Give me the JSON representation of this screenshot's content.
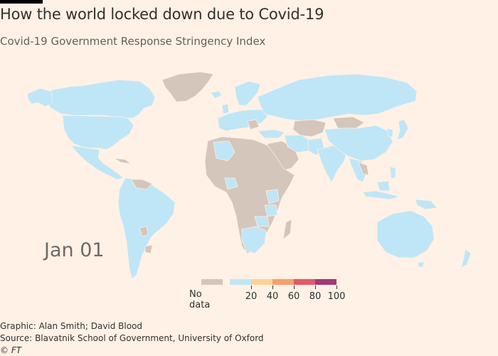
{
  "header": {
    "title": "How the world locked down due to Covid-19",
    "subtitle": "Covid-19 Government Response Stringency Index"
  },
  "map": {
    "date_label": "Jan 01",
    "colors": {
      "background": "#fff1e5",
      "no_data": "#d5c6bb",
      "low": "#bfe6f6"
    }
  },
  "legend": {
    "no_data_label": "No data",
    "no_data_color": "#d5c6bb",
    "bins": [
      {
        "color": "#bfe6f6"
      },
      {
        "color": "#fcd29a"
      },
      {
        "color": "#f5a06e"
      },
      {
        "color": "#e05a6a"
      },
      {
        "color": "#a63776"
      }
    ],
    "ticks": [
      "20",
      "40",
      "60",
      "80",
      "100"
    ]
  },
  "footer": {
    "graphic": "Graphic: Alan Smith; David Blood",
    "source": "Source: Blavatnik School of Government, University of Oxford",
    "copyright": "© FT"
  }
}
